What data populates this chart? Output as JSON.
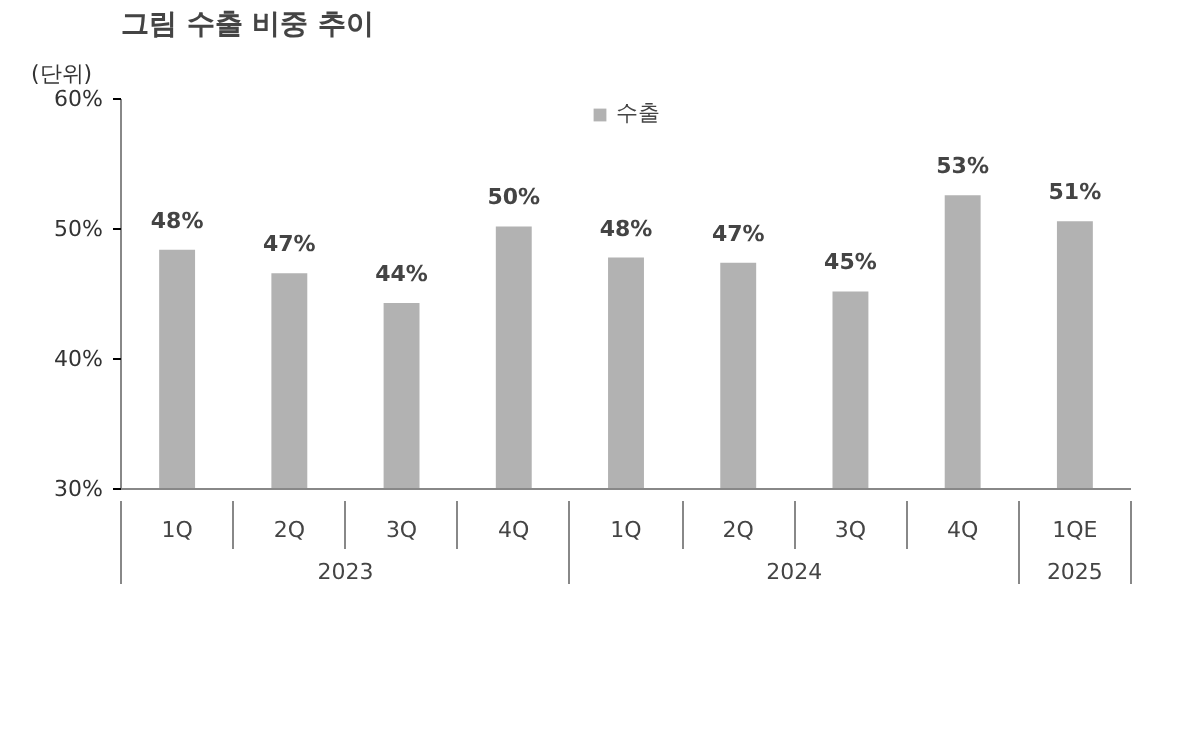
{
  "chart_data": {
    "type": "bar",
    "title": "그림    수출 비중 추이",
    "ylabel": "(단위)",
    "categories": [
      "1Q",
      "2Q",
      "3Q",
      "4Q",
      "1Q",
      "2Q",
      "3Q",
      "4Q",
      "1QE"
    ],
    "series": [
      {
        "name": "수출",
        "color": "#b2b2b2",
        "values": [
          48.4,
          46.6,
          44.3,
          50.2,
          47.8,
          47.4,
          45.2,
          52.6,
          50.6
        ],
        "value_labels": [
          "48%",
          "47%",
          "44%",
          "50%",
          "48%",
          "47%",
          "45%",
          "53%",
          "51%"
        ]
      }
    ],
    "annotations": [
      "2023",
      "2024",
      "2025"
    ],
    "ylim": [
      30,
      60
    ],
    "yticks": [
      {
        "value": 30,
        "label": "30%"
      },
      {
        "value": 40,
        "label": "40%"
      },
      {
        "value": 50,
        "label": "50%"
      },
      {
        "value": 60,
        "label": "60%"
      }
    ],
    "grid": false,
    "legend": "top"
  }
}
